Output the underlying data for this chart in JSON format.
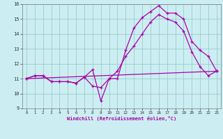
{
  "xlabel": "Windchill (Refroidissement éolien,°C)",
  "xlim": [
    -0.5,
    23.5
  ],
  "ylim": [
    9,
    16
  ],
  "xticks": [
    0,
    1,
    2,
    3,
    4,
    5,
    6,
    7,
    8,
    9,
    10,
    11,
    12,
    13,
    14,
    15,
    16,
    17,
    18,
    19,
    20,
    21,
    22,
    23
  ],
  "yticks": [
    9,
    10,
    11,
    12,
    13,
    14,
    15,
    16
  ],
  "bg_color": "#cceef2",
  "line_color": "#aa00aa",
  "grid_color": "#99cccc",
  "series": [
    {
      "x": [
        0,
        1,
        2,
        3,
        4,
        5,
        6,
        7,
        8,
        9,
        10,
        11,
        12,
        13,
        14,
        15,
        16,
        17,
        18,
        19,
        20,
        21,
        22,
        23
      ],
      "y": [
        11.0,
        11.2,
        11.2,
        10.8,
        10.8,
        10.8,
        10.7,
        11.1,
        11.6,
        9.5,
        11.0,
        11.0,
        12.9,
        14.4,
        15.1,
        15.5,
        15.9,
        15.4,
        15.4,
        15.0,
        13.5,
        12.9,
        12.5,
        11.5
      ]
    },
    {
      "x": [
        0,
        1,
        2,
        3,
        4,
        5,
        6,
        7,
        8,
        9,
        10,
        11,
        12,
        13,
        14,
        15,
        16,
        17,
        18,
        19,
        20,
        21,
        22,
        23
      ],
      "y": [
        11.0,
        11.2,
        11.2,
        10.8,
        10.8,
        10.8,
        10.7,
        11.1,
        10.5,
        10.4,
        11.0,
        11.5,
        12.5,
        13.2,
        14.0,
        14.8,
        15.3,
        15.0,
        14.8,
        14.2,
        12.8,
        11.8,
        11.2,
        11.5
      ]
    },
    {
      "x": [
        0,
        23
      ],
      "y": [
        11.0,
        11.5
      ]
    }
  ]
}
